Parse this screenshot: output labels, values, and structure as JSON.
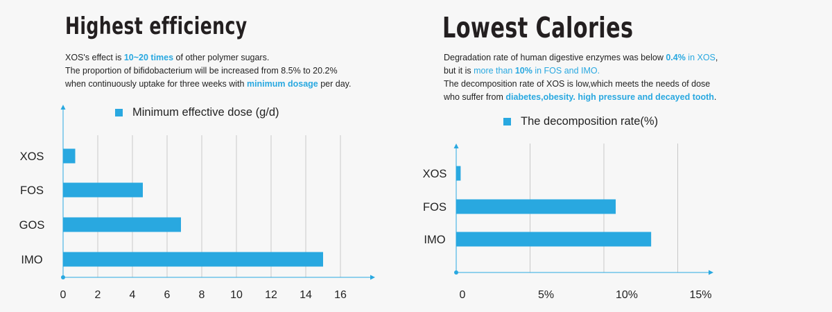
{
  "left": {
    "title": "Highest efficiency",
    "desc": {
      "line1": {
        "a": "XOS's effect is ",
        "b": "10~20 times",
        "c": " of other polymer sugars."
      },
      "line2": "The proportion of bifidobacterium will be increased from 8.5% to 20.2%",
      "line3": {
        "a": "when continuously uptake for three weeks with ",
        "b": "minimum dosage",
        "c": " per day."
      }
    }
  },
  "right": {
    "title": "Lowest Calories",
    "desc": {
      "line1": {
        "a": "Degradation rate of human digestive enzymes was below ",
        "b": "0.4%",
        "c": " in XOS",
        "d": ","
      },
      "line2": {
        "a": "but it is ",
        "b": "more than ",
        "c": "10%",
        "d": " in FOS and IMO."
      },
      "line3": "The decomposition rate of XOS is low,which meets the needs of dose",
      "line4": {
        "a": "who suffer from ",
        "b": "diabetes,obesity. high pressure and decayed tooth",
        "c": "."
      }
    }
  },
  "colors": {
    "bar": "#29a8e0",
    "axis": "#29a8e0",
    "grid": "#c8c8c8"
  },
  "chart_data": [
    {
      "type": "bar",
      "orientation": "horizontal",
      "title": "",
      "legend": "Minimum effective dose (g/d)",
      "categories": [
        "XOS",
        "FOS",
        "GOS",
        "IMO"
      ],
      "series": [
        {
          "name": "Minimum effective dose (g/d)",
          "values": [
            0.7,
            4.6,
            6.8,
            15
          ]
        }
      ],
      "xticks": [
        "0",
        "2",
        "4",
        "6",
        "8",
        "10",
        "12",
        "14",
        "16"
      ],
      "xlim": [
        0,
        18
      ],
      "grid": true,
      "legend_position": "top"
    },
    {
      "type": "bar",
      "orientation": "horizontal",
      "title": "",
      "legend": "The decomposition rate(%)",
      "categories": [
        "XOS",
        "FOS",
        "IMO"
      ],
      "series": [
        {
          "name": "The decomposition rate(%)",
          "values": [
            0.3,
            10.8,
            13.2
          ]
        }
      ],
      "xticks": [
        "0",
        "5%",
        "10%",
        "15%"
      ],
      "xlim": [
        0,
        17
      ],
      "grid": true,
      "legend_position": "top"
    }
  ]
}
